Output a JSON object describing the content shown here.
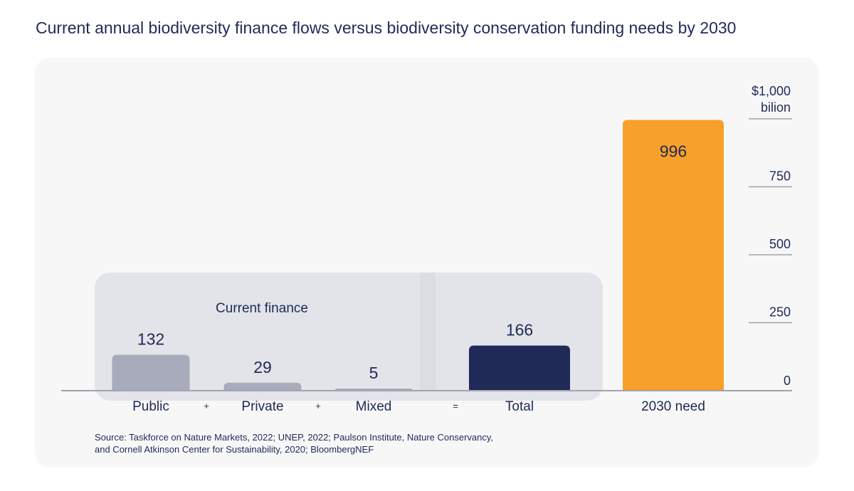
{
  "title": "Current annual biodiversity finance flows versus biodiversity conservation funding needs by 2030",
  "chart_data": {
    "type": "bar",
    "title": "Current annual biodiversity finance flows versus biodiversity conservation funding needs by 2030",
    "categories": [
      "Public",
      "Private",
      "Mixed",
      "Total",
      "2030 need"
    ],
    "values": [
      132,
      29,
      5,
      166,
      996
    ],
    "value_labels": [
      "132",
      "29",
      "5",
      "166",
      "996"
    ],
    "operators": [
      "+",
      "+",
      "="
    ],
    "group_label": "Current finance",
    "yaxis": {
      "ticks": [
        0,
        250,
        500,
        750,
        1000
      ],
      "tick_labels": [
        "0",
        "250",
        "500",
        "750",
        "$1,000"
      ],
      "unit_label": "bilion",
      "ylim": [
        0,
        1000
      ],
      "side": "right"
    },
    "colors": {
      "components": "#a7abbb",
      "total": "#1f2a57",
      "need": "#f7a02a",
      "group_bg": "#e3e4e9",
      "axis": "#a0a3b0",
      "text": "#1f2a57"
    },
    "grid": false
  },
  "source": {
    "line1": "Source: Taskforce on Nature Markets, 2022; UNEP, 2022; Paulson Institute, Nature Conservancy,",
    "line2": "and Cornell Atkinson Center for Sustainability, 2020; BloombergNEF"
  }
}
